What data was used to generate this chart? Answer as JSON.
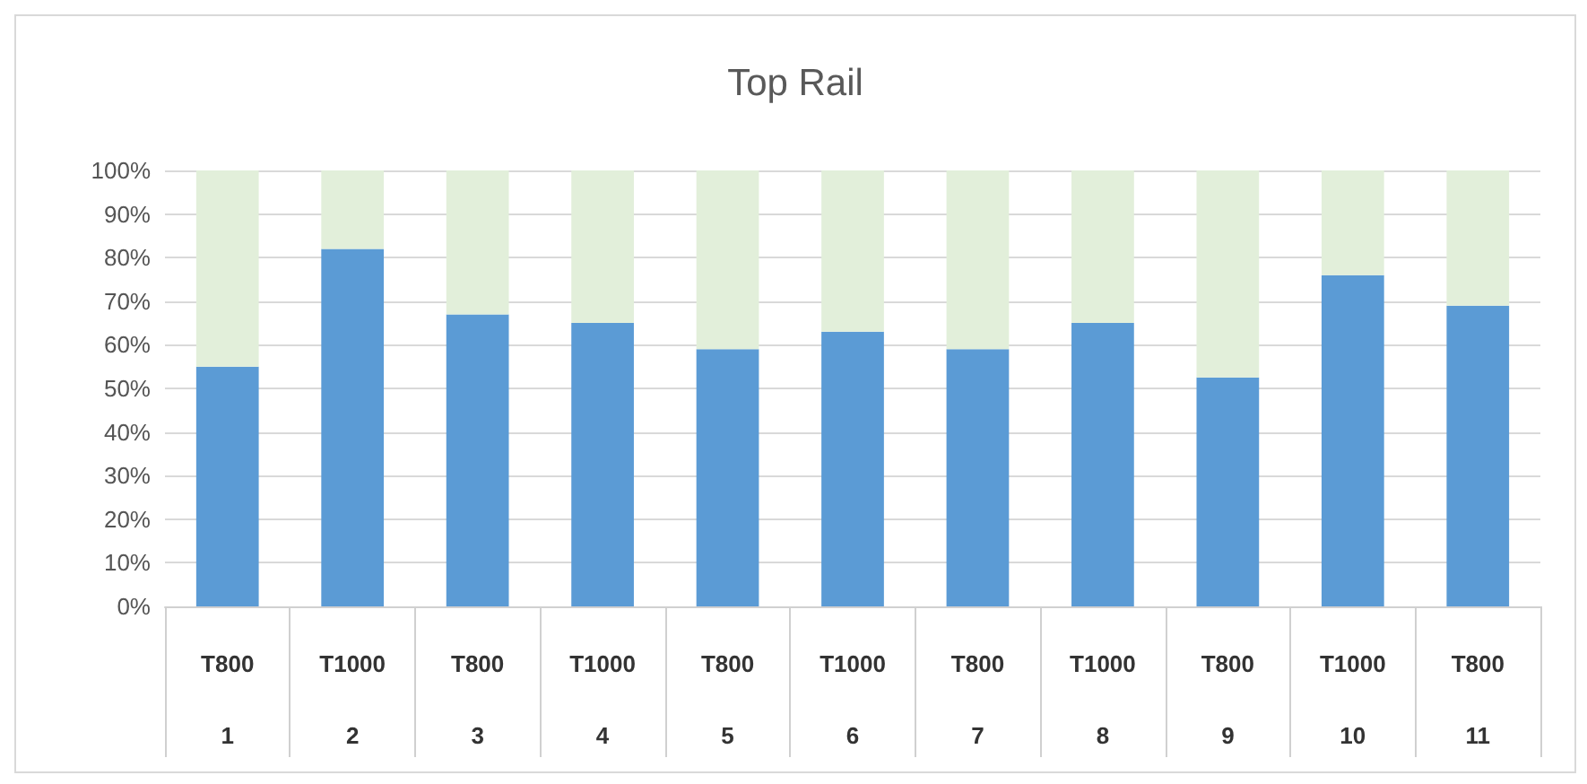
{
  "chart_data": {
    "type": "bar",
    "title": "Top Rail",
    "stacked": true,
    "categories": [
      "T800\n1",
      "T1000\n2",
      "T800\n3",
      "T1000\n4",
      "T800\n5",
      "T1000\n6",
      "T800\n7",
      "T1000\n8",
      "T800\n9",
      "T1000\n10",
      "T800\n11"
    ],
    "series": [
      {
        "color": "#5b9bd5",
        "values": [
          55,
          82,
          67,
          65,
          59,
          63,
          59,
          65,
          52.5,
          76,
          69
        ]
      },
      {
        "color": "#e2efda",
        "values": [
          45,
          18,
          33,
          35,
          41,
          37,
          41,
          35,
          47.5,
          24,
          31
        ]
      }
    ],
    "ylim": [
      0,
      100
    ],
    "yticks": [
      {
        "value": 0,
        "label": "0%"
      },
      {
        "value": 10,
        "label": "10%"
      },
      {
        "value": 20,
        "label": "20%"
      },
      {
        "value": 30,
        "label": "30%"
      },
      {
        "value": 40,
        "label": "40%"
      },
      {
        "value": 50,
        "label": "50%"
      },
      {
        "value": 60,
        "label": "60%"
      },
      {
        "value": 70,
        "label": "70%"
      },
      {
        "value": 80,
        "label": "80%"
      },
      {
        "value": 90,
        "label": "90%"
      },
      {
        "value": 100,
        "label": "100%"
      }
    ],
    "grid": "y"
  }
}
